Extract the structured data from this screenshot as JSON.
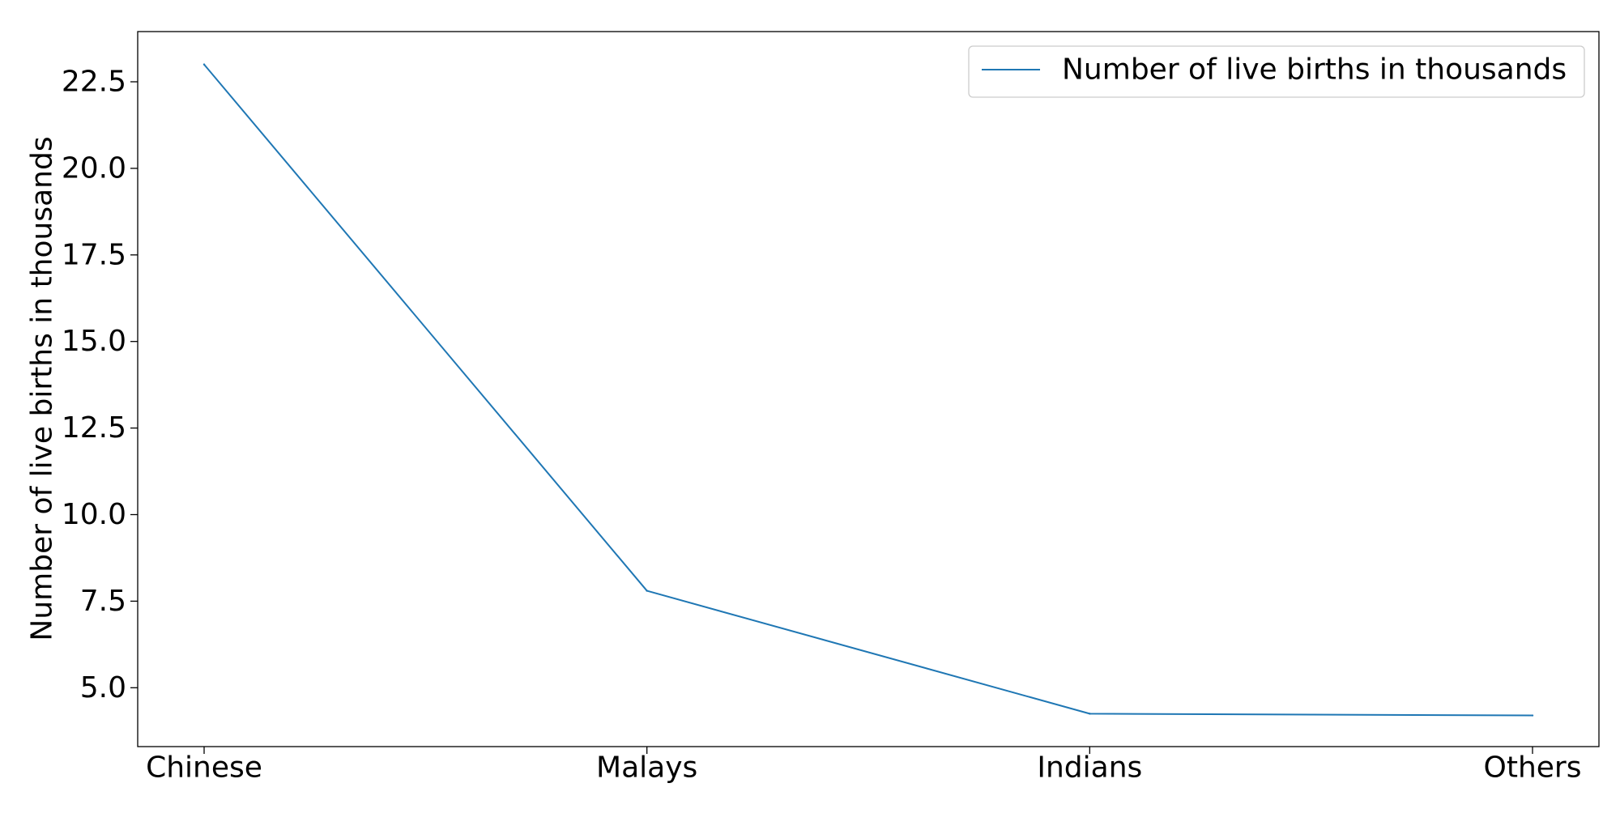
{
  "chart_data": {
    "type": "line",
    "categories": [
      "Chinese",
      "Malays",
      "Indians",
      "Others"
    ],
    "series": [
      {
        "name": "Number of live births in thousands",
        "values": [
          23.0,
          7.8,
          4.25,
          4.2
        ],
        "color": "#1f77b4"
      }
    ],
    "title": "",
    "xlabel": "",
    "ylabel": "Number of live births in thousands",
    "ylim": [
      3.3,
      23.95
    ],
    "yticks": [
      5.0,
      7.5,
      10.0,
      12.5,
      15.0,
      17.5,
      20.0,
      22.5
    ],
    "ytick_labels": [
      "5.0",
      "7.5",
      "10.0",
      "12.5",
      "15.0",
      "17.5",
      "20.0",
      "22.5"
    ],
    "grid": false,
    "legend_position": "top-right"
  }
}
